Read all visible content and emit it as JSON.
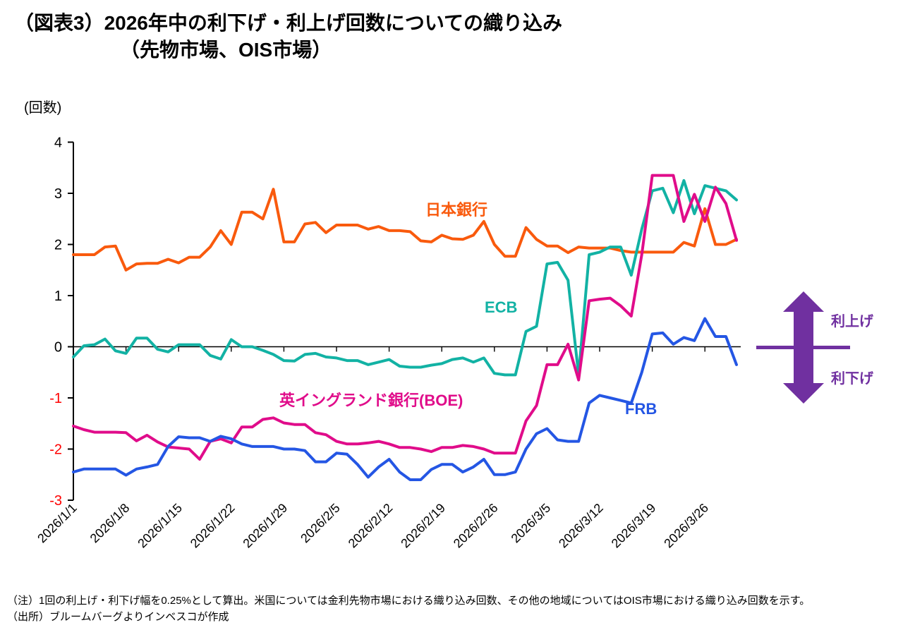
{
  "title": {
    "line1": "（図表3）2026年中の利下げ・利上げ回数についての織り込み",
    "line2": "（先物市場、OIS市場）"
  },
  "unit_label": "(回数)",
  "notes": {
    "note": "（注）1回の利上げ・利下げ幅を0.25%として算出。米国については金利先物市場における織り込み回数、その他の地域についてはOIS市場における織り込み回数を示す。",
    "source": "（出所）ブルームバーグよりインベスコが作成"
  },
  "annotation": {
    "up_label": "利上げ",
    "down_label": "利下げ",
    "arrow_color": "#7030A0"
  },
  "chart_data": {
    "type": "line",
    "title": "2026年中の利下げ・利上げ回数についての織り込み（先物市場、OIS市場）",
    "ylabel": "(回数)",
    "ylim": [
      -3,
      4
    ],
    "y_ticks": [
      4,
      3,
      2,
      1,
      0,
      -1,
      -2,
      -3
    ],
    "negative_tick_color": "#FF0000",
    "positive_tick_color": "#000000",
    "grid": false,
    "legend_position": "inline-labels",
    "x_tick_labels": [
      "2026/1/1",
      "2026/1/8",
      "2026/1/15",
      "2026/1/22",
      "2026/1/29",
      "2026/2/5",
      "2026/2/12",
      "2026/2/19",
      "2026/2/26",
      "2026/3/5",
      "2026/3/12",
      "2026/3/19",
      "2026/3/26"
    ],
    "x_points_per_tick": 5,
    "series": [
      {
        "name": "boj",
        "label": "日本銀行",
        "color": "#F95A0D",
        "values": [
          1.8,
          1.8,
          1.8,
          1.95,
          1.97,
          1.5,
          1.62,
          1.63,
          1.63,
          1.71,
          1.64,
          1.75,
          1.75,
          1.95,
          2.27,
          2.0,
          2.63,
          2.63,
          2.5,
          3.08,
          2.05,
          2.05,
          2.4,
          2.43,
          2.23,
          2.38,
          2.38,
          2.38,
          2.3,
          2.35,
          2.27,
          2.27,
          2.25,
          2.07,
          2.05,
          2.18,
          2.11,
          2.1,
          2.18,
          2.45,
          2.0,
          1.77,
          1.77,
          2.33,
          2.1,
          1.97,
          1.97,
          1.84,
          1.95,
          1.93,
          1.93,
          1.93,
          1.88,
          1.85,
          1.85,
          1.85,
          1.85,
          1.85,
          2.04,
          1.97,
          2.7,
          2.0,
          2.0,
          2.1
        ]
      },
      {
        "name": "ecb",
        "label": "ECB",
        "color": "#12B2A4",
        "values": [
          -0.2,
          0.02,
          0.04,
          0.15,
          -0.08,
          -0.13,
          0.17,
          0.17,
          -0.05,
          -0.1,
          0.04,
          0.04,
          0.04,
          -0.17,
          -0.24,
          0.14,
          0.0,
          0.0,
          -0.07,
          -0.15,
          -0.27,
          -0.28,
          -0.15,
          -0.13,
          -0.2,
          -0.22,
          -0.27,
          -0.27,
          -0.35,
          -0.3,
          -0.25,
          -0.38,
          -0.4,
          -0.4,
          -0.36,
          -0.33,
          -0.25,
          -0.22,
          -0.3,
          -0.22,
          -0.52,
          -0.55,
          -0.55,
          0.3,
          0.4,
          1.62,
          1.65,
          1.3,
          -0.55,
          1.8,
          1.85,
          1.95,
          1.95,
          1.4,
          2.3,
          3.05,
          3.1,
          2.62,
          3.25,
          2.6,
          3.15,
          3.1,
          3.05,
          2.87
        ]
      },
      {
        "name": "boe",
        "label": "英イングランド銀行(BOE)",
        "color": "#E00C8A",
        "values": [
          -1.55,
          -1.62,
          -1.67,
          -1.67,
          -1.67,
          -1.68,
          -1.84,
          -1.73,
          -1.86,
          -1.96,
          -1.98,
          -2.0,
          -2.2,
          -1.85,
          -1.8,
          -1.88,
          -1.57,
          -1.57,
          -1.42,
          -1.39,
          -1.49,
          -1.52,
          -1.52,
          -1.68,
          -1.72,
          -1.85,
          -1.9,
          -1.9,
          -1.88,
          -1.85,
          -1.9,
          -1.97,
          -1.97,
          -2.0,
          -2.05,
          -1.97,
          -1.97,
          -1.93,
          -1.95,
          -2.0,
          -2.08,
          -2.08,
          -2.08,
          -1.45,
          -1.15,
          -0.35,
          -0.35,
          0.05,
          -0.65,
          0.9,
          0.93,
          0.95,
          0.8,
          0.6,
          1.8,
          3.35,
          3.35,
          3.35,
          2.45,
          2.98,
          2.45,
          3.12,
          2.8,
          2.08
        ]
      },
      {
        "name": "frb",
        "label": "FRB",
        "color": "#2456E4",
        "values": [
          -2.45,
          -2.39,
          -2.39,
          -2.39,
          -2.39,
          -2.51,
          -2.39,
          -2.35,
          -2.3,
          -1.95,
          -1.76,
          -1.78,
          -1.78,
          -1.85,
          -1.75,
          -1.8,
          -1.9,
          -1.95,
          -1.95,
          -1.95,
          -2.0,
          -2.0,
          -2.03,
          -2.25,
          -2.25,
          -2.08,
          -2.1,
          -2.3,
          -2.55,
          -2.35,
          -2.2,
          -2.45,
          -2.6,
          -2.6,
          -2.4,
          -2.3,
          -2.3,
          -2.45,
          -2.35,
          -2.2,
          -2.5,
          -2.5,
          -2.45,
          -2.0,
          -1.7,
          -1.6,
          -1.82,
          -1.85,
          -1.85,
          -1.1,
          -0.95,
          -1.0,
          -1.05,
          -1.1,
          -0.5,
          0.25,
          0.27,
          0.05,
          0.18,
          0.12,
          0.55,
          0.2,
          0.2,
          -0.35
        ]
      }
    ]
  }
}
